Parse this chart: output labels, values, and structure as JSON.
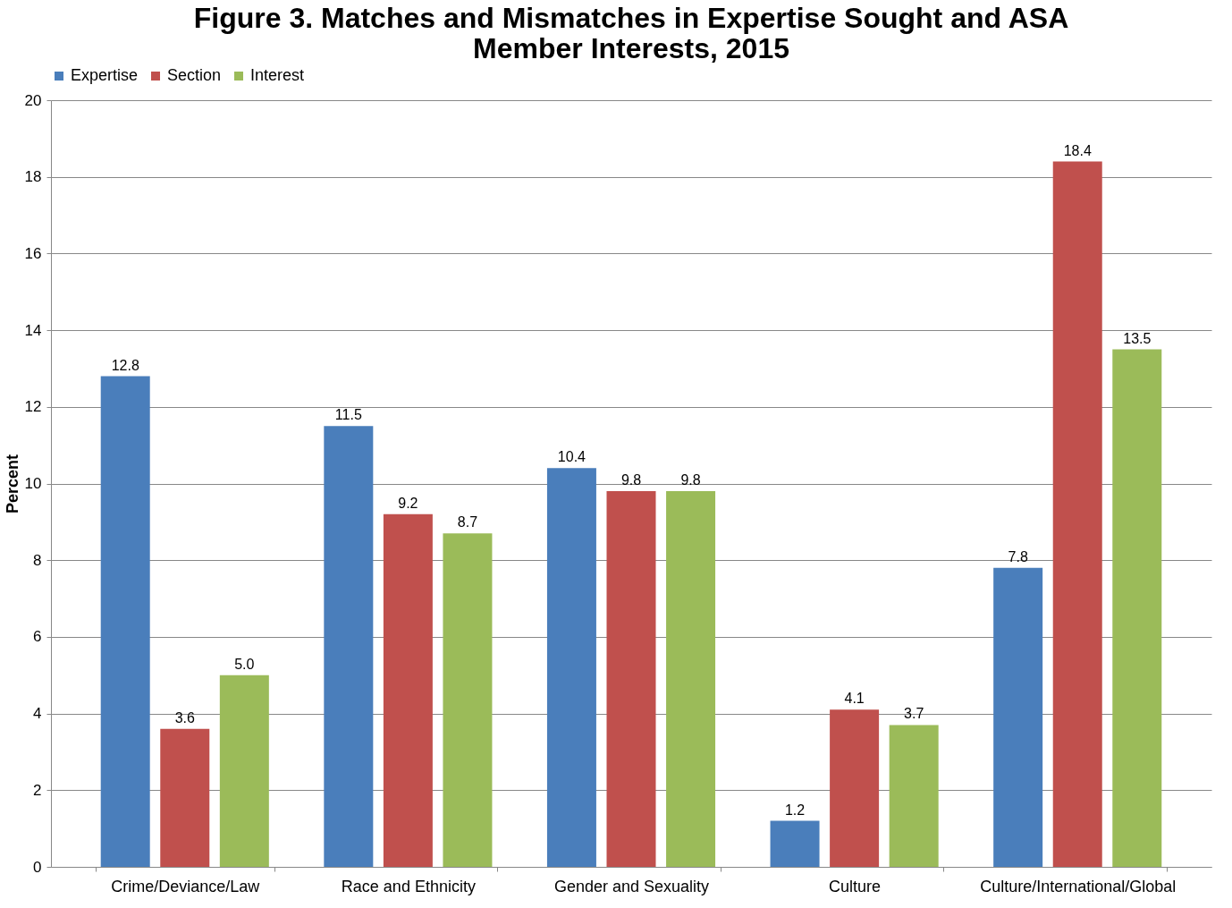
{
  "chart_data": {
    "type": "bar",
    "title": [
      "Figure 3. Matches and Mismatches in Expertise Sought and ASA",
      "Member Interests, 2015"
    ],
    "ylabel": "Percent",
    "categories": [
      "Crime/Deviance/Law",
      "Race and Ethnicity",
      "Gender and Sexuality",
      "Culture",
      "Culture/International/Global"
    ],
    "series": [
      {
        "name": "Expertise",
        "color": "#4a7ebb",
        "values": [
          12.8,
          11.5,
          10.4,
          1.2,
          7.8
        ],
        "value_labels": [
          "12.8",
          "11.5",
          "10.4",
          "1.2",
          "7.8"
        ]
      },
      {
        "name": "Section",
        "color": "#c0504d",
        "values": [
          3.6,
          9.2,
          9.8,
          4.1,
          18.4
        ],
        "value_labels": [
          "3.6",
          "9.2",
          "9.8",
          "4.1",
          "18.4"
        ]
      },
      {
        "name": "Interest",
        "color": "#9bbb59",
        "values": [
          5.0,
          8.7,
          9.8,
          3.7,
          13.5
        ],
        "value_labels": [
          "5.0",
          "8.7",
          "9.8",
          "3.7",
          "13.5"
        ]
      }
    ],
    "ylim": [
      0,
      20
    ],
    "yticks": [
      0,
      2,
      4,
      6,
      8,
      10,
      12,
      14,
      16,
      18,
      20
    ],
    "grid": "y",
    "legend": "top"
  }
}
